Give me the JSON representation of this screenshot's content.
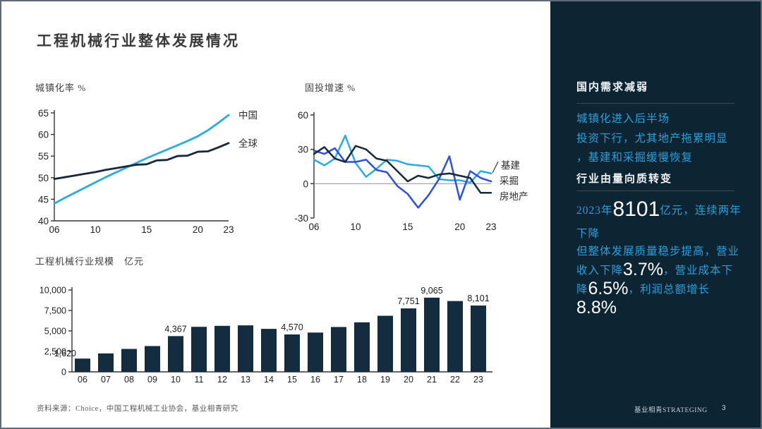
{
  "slide": {
    "title": "工程机械行业整体发展情况",
    "source_note": "资料来源：Choice，中国工程机械工业协会，基业相青研究"
  },
  "colors": {
    "accent_light_blue": "#29ABE2",
    "royal_blue": "#2F4FDE",
    "dark_navy": "#16293C",
    "sidebar_bg": "#0D2433",
    "sidebar_blue_text": "#2D9ED8",
    "bar_color": "#132C3F"
  },
  "sidebar": {
    "sections": [
      {
        "heading": "国内需求减弱",
        "body": "城镇化进入后半场\n投资下行，尤其地产拖累明显\n，基建和采掘缓慢恢复"
      },
      {
        "heading": "行业由量向质转变"
      }
    ],
    "para_scale": {
      "segments": [
        {
          "text": "2023年"
        },
        {
          "text": "8101",
          "emph": true
        },
        {
          "text": "亿元，连续两年\n下降"
        }
      ]
    },
    "para_quality": {
      "segments": [
        {
          "text": "但整体发展质量稳步提高，营业收入下降"
        },
        {
          "text": "3.7%",
          "emph": true
        },
        {
          "text": "，营业成本下降"
        },
        {
          "text": "6.5%",
          "emph": true
        },
        {
          "text": "，利润总额增长"
        },
        {
          "text": "8.8%",
          "emph": true
        }
      ]
    },
    "footer_brand": "基业相青STRATEGING",
    "page_number": "3"
  },
  "chart_data": [
    {
      "type": "line",
      "title": "城镇化率 %",
      "categories": [
        "06",
        "07",
        "08",
        "09",
        "10",
        "11",
        "12",
        "13",
        "14",
        "15",
        "16",
        "17",
        "18",
        "19",
        "20",
        "21",
        "22",
        "23"
      ],
      "x_tick_labels": [
        "06",
        "10",
        "15",
        "20",
        "23"
      ],
      "ylim": [
        40,
        65
      ],
      "yticks": [
        40,
        45,
        50,
        55,
        60,
        65
      ],
      "x_axis_line": true,
      "zero_line": false,
      "legend_position": "line-end-right",
      "grid": false,
      "series": [
        {
          "name": "中国",
          "color": "#29ABE2",
          "values": [
            44.0,
            45.3,
            46.5,
            47.7,
            48.9,
            50.1,
            51.2,
            52.3,
            53.4,
            54.5,
            55.5,
            56.5,
            57.5,
            58.5,
            59.6,
            61.0,
            62.7,
            64.5
          ]
        },
        {
          "name": "全球",
          "color": "#16293C",
          "values": [
            49.7,
            50.1,
            50.5,
            50.9,
            51.3,
            51.8,
            52.2,
            52.6,
            53.0,
            53.1,
            54.0,
            54.1,
            55.0,
            55.1,
            56.0,
            56.1,
            57.0,
            58.0
          ]
        }
      ]
    },
    {
      "type": "line",
      "title": "固投增速 %",
      "categories": [
        "06",
        "07",
        "08",
        "09",
        "10",
        "11",
        "12",
        "13",
        "14",
        "15",
        "16",
        "17",
        "18",
        "19",
        "20",
        "21",
        "22",
        "23"
      ],
      "x_tick_labels": [
        "06",
        "10",
        "15",
        "20",
        "23"
      ],
      "ylim": [
        -30,
        60
      ],
      "yticks": [
        -30,
        0,
        30,
        60
      ],
      "x_axis_line": false,
      "zero_line": true,
      "legend_position": "right-stacked",
      "grid": false,
      "series": [
        {
          "name": "基建",
          "color": "#29ABE2",
          "values": [
            21,
            16,
            22,
            42,
            18,
            6,
            13,
            21,
            20,
            17,
            16,
            15,
            4,
            3,
            3,
            1,
            11,
            9
          ]
        },
        {
          "name": "采掘",
          "color": "#2F4FDE",
          "values": [
            29,
            26,
            31,
            19,
            19,
            21,
            12,
            10,
            -2,
            -9,
            -21,
            -10,
            4,
            24,
            -14,
            11,
            5,
            2
          ]
        },
        {
          "name": "房地产",
          "color": "#16293C",
          "values": [
            26,
            32,
            22,
            19,
            33,
            30,
            22,
            20,
            11,
            2,
            7,
            5,
            8,
            9,
            7,
            5,
            -8,
            -8
          ]
        }
      ]
    },
    {
      "type": "bar",
      "title": "工程机械行业规模　亿元",
      "categories": [
        "06",
        "07",
        "08",
        "09",
        "10",
        "11",
        "12",
        "13",
        "14",
        "15",
        "16",
        "17",
        "18",
        "19",
        "20",
        "21",
        "22",
        "23"
      ],
      "values": [
        1620,
        2250,
        2800,
        3150,
        4367,
        5500,
        5620,
        5680,
        5250,
        4570,
        4800,
        5480,
        6050,
        6850,
        7751,
        9065,
        8650,
        8101
      ],
      "labels": {
        "0": "1,620",
        "4": "4,367",
        "9": "4,570",
        "14": "7,751",
        "15": "9,065",
        "17": "8,101"
      },
      "ylim": [
        0,
        10000
      ],
      "yticks": [
        0,
        2500,
        5000,
        7500,
        10000
      ],
      "ytick_labels": [
        "0",
        "2,500",
        "5,000",
        "7,500",
        "10,000"
      ],
      "bar_color": "#132C3F",
      "grid": false
    }
  ]
}
